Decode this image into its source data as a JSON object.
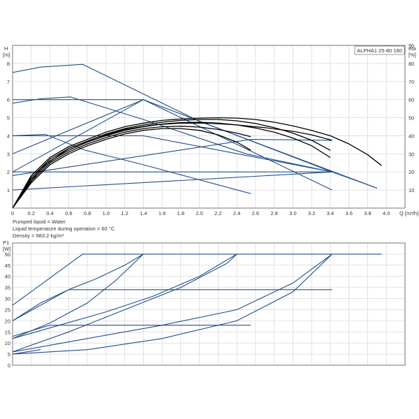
{
  "notes": {
    "pumped_liquid": "Pumped liquid = Water",
    "liquid_temp": "Liquid temperature during operation = 60 °C",
    "density": "Density = 983.2 kg/m³"
  },
  "chart_data": [
    {
      "type": "line",
      "title": "ALPHA1 25-80 180",
      "xlabel": "Q [m³/h]",
      "ylabel": "H [m]",
      "ylabel_parts": [
        "H",
        "[m]"
      ],
      "y2label_parts": [
        "eta",
        "[%]"
      ],
      "xlim": [
        0,
        4.2
      ],
      "ylim": [
        0,
        9
      ],
      "y2lim": [
        0,
        90
      ],
      "xticks": [
        "0",
        "0.2",
        "0.4",
        "0.6",
        "0.8",
        "1.0",
        "1.2",
        "1.4",
        "1.6",
        "1.8",
        "2.0",
        "2.2",
        "2.4",
        "2.6",
        "2.8",
        "3.0",
        "3.2",
        "3.4",
        "3.6",
        "3.8",
        "4.0",
        "Q [m³/h]"
      ],
      "yticks": [
        "1",
        "2",
        "3",
        "4",
        "5",
        "6",
        "7",
        "8"
      ],
      "y2ticks": [
        "10",
        "20",
        "30",
        "40",
        "50",
        "60",
        "70",
        "80",
        "90"
      ],
      "grid": true,
      "colors": {
        "hq": "#1f4e8c",
        "eta": "#000000"
      },
      "hq_curves": [
        {
          "x": [
            0,
            0.3,
            0.75,
            2.0,
            3.9
          ],
          "y": [
            7.5,
            7.8,
            7.95,
            4.8,
            1.1
          ]
        },
        {
          "x": [
            0,
            0.3,
            0.62,
            1.4,
            2.5,
            3.42
          ],
          "y": [
            5.8,
            6.05,
            6.15,
            4.9,
            3.0,
            2.0
          ]
        },
        {
          "x": [
            0,
            0.35,
            0.78,
            1.4,
            2.55
          ],
          "y": [
            4.0,
            4.08,
            3.2,
            2.4,
            0.8
          ]
        },
        {
          "x": [
            0,
            1.4,
            3.42
          ],
          "y": [
            6.0,
            6.0,
            1.0
          ]
        },
        {
          "x": [
            0,
            1.4,
            3.42,
            3.9
          ],
          "y": [
            4.0,
            4.0,
            2.0,
            1.1
          ]
        },
        {
          "x": [
            0,
            1.4
          ],
          "y": [
            2.0,
            6.0
          ]
        },
        {
          "x": [
            0,
            2.55,
            3.42
          ],
          "y": [
            1.8,
            3.8,
            3.75
          ]
        },
        {
          "x": [
            0,
            1.4,
            3.42
          ],
          "y": [
            3.0,
            6.0,
            2.0
          ]
        },
        {
          "x": [
            0,
            2.55
          ],
          "y": [
            2.0,
            2.0
          ]
        },
        {
          "x": [
            2.55,
            3.42
          ],
          "y": [
            2.0,
            2.0
          ]
        },
        {
          "x": [
            0,
            3.42
          ],
          "y": [
            1.0,
            2.0
          ]
        }
      ],
      "eta_curves": [
        {
          "x": [
            0,
            0.2,
            0.4,
            0.6,
            0.8,
            1.0,
            1.2,
            1.4,
            1.6,
            1.8,
            2.0,
            2.2,
            2.4,
            2.6,
            2.8,
            3.0,
            3.2,
            3.4,
            3.6,
            3.8,
            3.95
          ],
          "y": [
            0,
            18,
            28,
            34,
            38,
            42,
            45,
            47,
            48.5,
            49.3,
            49.8,
            50,
            49.8,
            49,
            47.5,
            45.5,
            43,
            40,
            35.5,
            29.5,
            23.5
          ]
        },
        {
          "x": [
            0,
            0.2,
            0.4,
            0.6,
            0.8,
            1.0,
            1.2,
            1.4,
            1.6,
            1.8,
            2.0,
            2.2,
            2.4,
            2.6,
            2.8,
            3.0,
            3.2,
            3.4
          ],
          "y": [
            0,
            17,
            27,
            33,
            37,
            41,
            44,
            46,
            47.5,
            48.5,
            49,
            49,
            48.3,
            46.8,
            44.5,
            41.5,
            37.5,
            32
          ]
        },
        {
          "x": [
            0,
            0.2,
            0.4,
            0.6,
            0.8,
            1.0,
            1.2,
            1.4,
            1.6,
            1.8,
            2.0,
            2.2,
            2.4,
            2.6,
            2.8,
            3.0,
            3.2,
            3.4
          ],
          "y": [
            0,
            16,
            26,
            32,
            36.5,
            40,
            43,
            45,
            46.5,
            47.3,
            47.5,
            47,
            46,
            44.3,
            42,
            38.8,
            34.5,
            28
          ]
        },
        {
          "x": [
            0,
            0.2,
            0.4,
            0.6,
            0.8,
            1.0,
            1.2,
            1.4,
            1.6,
            1.8,
            2.0,
            2.2,
            2.4,
            2.55
          ],
          "y": [
            0,
            15,
            25,
            31,
            35.5,
            39,
            42,
            44,
            45,
            45.3,
            44.8,
            43.5,
            41.5,
            39.5
          ]
        },
        {
          "x": [
            0,
            0.2,
            0.4,
            0.6,
            0.8,
            1.0,
            1.2,
            1.4,
            1.6,
            1.8,
            2.0,
            2.2,
            2.4,
            2.55
          ],
          "y": [
            0,
            14,
            24,
            30,
            34.5,
            38,
            41,
            43,
            44,
            44,
            43,
            40.5,
            36.5,
            32
          ]
        },
        {
          "x": [
            0,
            0.3,
            0.6,
            0.9,
            1.2,
            1.5,
            1.8,
            2.1,
            2.4,
            2.7,
            3.0,
            3.2,
            3.42
          ],
          "y": [
            0,
            22,
            33,
            39,
            43.5,
            46,
            47,
            47,
            46,
            44.5,
            42.5,
            40.5,
            37.5
          ]
        }
      ]
    },
    {
      "type": "line",
      "xlabel": "",
      "ylabel": "P1 [W]",
      "ylabel_parts": [
        "P1",
        "[W]"
      ],
      "xlim": [
        0,
        4.2
      ],
      "ylim": [
        0,
        55
      ],
      "yticks": [
        "0",
        "5",
        "10",
        "15",
        "20",
        "25",
        "30",
        "35",
        "40",
        "45",
        "50"
      ],
      "grid": true,
      "colors": {
        "p1": "#1f4e8c"
      },
      "p1_curves": [
        {
          "x": [
            0,
            0.75,
            3.95
          ],
          "y": [
            27,
            50,
            50
          ]
        },
        {
          "x": [
            0,
            0.3,
            0.6,
            0.9,
            1.2,
            1.4
          ],
          "y": [
            20,
            28,
            34,
            39,
            45,
            50
          ]
        },
        {
          "x": [
            0,
            0.4,
            0.8,
            1.1,
            1.4
          ],
          "y": [
            12,
            19,
            28,
            38,
            50
          ]
        },
        {
          "x": [
            0,
            0.5,
            1.0,
            1.5,
            2.0,
            2.4
          ],
          "y": [
            12,
            18,
            24,
            31,
            40,
            50
          ]
        },
        {
          "x": [
            0,
            0.6,
            1.2,
            1.8,
            2.3,
            2.4
          ],
          "y": [
            6,
            15,
            25,
            35,
            46,
            50
          ]
        },
        {
          "x": [
            0,
            0.8,
            1.6,
            2.4,
            3.0,
            3.42
          ],
          "y": [
            6,
            12,
            18,
            25,
            37,
            50
          ]
        },
        {
          "x": [
            0,
            0.8,
            1.6,
            2.4,
            3.0,
            3.42
          ],
          "y": [
            5,
            7,
            12,
            20,
            33,
            50
          ]
        },
        {
          "x": [
            0,
            0.6,
            3.42
          ],
          "y": [
            20,
            34,
            34
          ]
        },
        {
          "x": [
            0,
            0.4,
            2.55
          ],
          "y": [
            13,
            18,
            18
          ]
        },
        {
          "x": [
            0,
            0.3
          ],
          "y": [
            5,
            7
          ]
        }
      ]
    }
  ]
}
